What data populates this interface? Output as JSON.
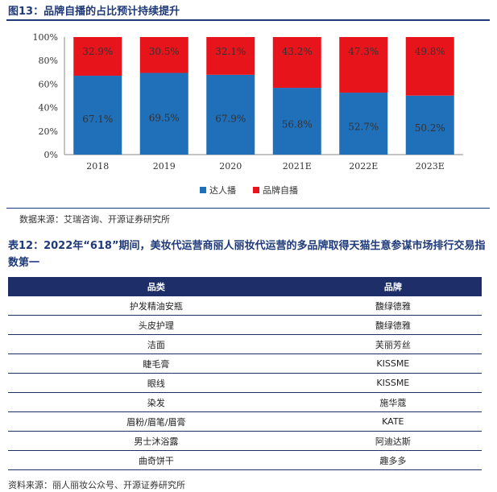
{
  "figure": {
    "title": "图13：品牌自播的占比预计持续提升",
    "source": "数据来源：艾瑞咨询、开源证券研究所"
  },
  "chart_data": {
    "type": "bar",
    "stacked": true,
    "title": "品牌自播的占比预计持续提升",
    "categories": [
      "2018",
      "2019",
      "2020",
      "2021E",
      "2022E",
      "2023E"
    ],
    "series": [
      {
        "name": "达人播",
        "color": "#1f6fb9",
        "values": [
          67.1,
          69.5,
          67.9,
          56.8,
          52.7,
          50.2
        ],
        "labels": [
          "67.1%",
          "69.5%",
          "67.9%",
          "56.8%",
          "52.7%",
          "50.2%"
        ]
      },
      {
        "name": "品牌自播",
        "color": "#e8141b",
        "values": [
          32.9,
          30.5,
          32.1,
          43.2,
          47.3,
          49.8
        ],
        "labels": [
          "32.9%",
          "30.5%",
          "32.1%",
          "43.2%",
          "47.3%",
          "49.8%"
        ]
      }
    ],
    "yticks": [
      "0%",
      "20%",
      "40%",
      "60%",
      "80%",
      "100%"
    ],
    "ylim": [
      0,
      100
    ],
    "legend_position": "bottom"
  },
  "table": {
    "title": "表12：2022年“618”期间，美妆代运营商丽人丽妆代运营的多品牌取得天猫生意参谋市场排行交易指数第一",
    "headers": [
      "品类",
      "品牌"
    ],
    "rows": [
      [
        "护发精油安瓶",
        "馥绿德雅"
      ],
      [
        "头皮护理",
        "馥绿德雅"
      ],
      [
        "洁面",
        "芙丽芳丝"
      ],
      [
        "睫毛膏",
        "KISSME"
      ],
      [
        "眼线",
        "KISSME"
      ],
      [
        "染发",
        "施华蔻"
      ],
      [
        "眉粉/眉笔/眉膏",
        "KATE"
      ],
      [
        "男士沐浴露",
        "阿迪达斯"
      ],
      [
        "曲奇饼干",
        "趣多多"
      ]
    ],
    "source": "资料来源：丽人丽妆公众号、开源证券研究所"
  }
}
